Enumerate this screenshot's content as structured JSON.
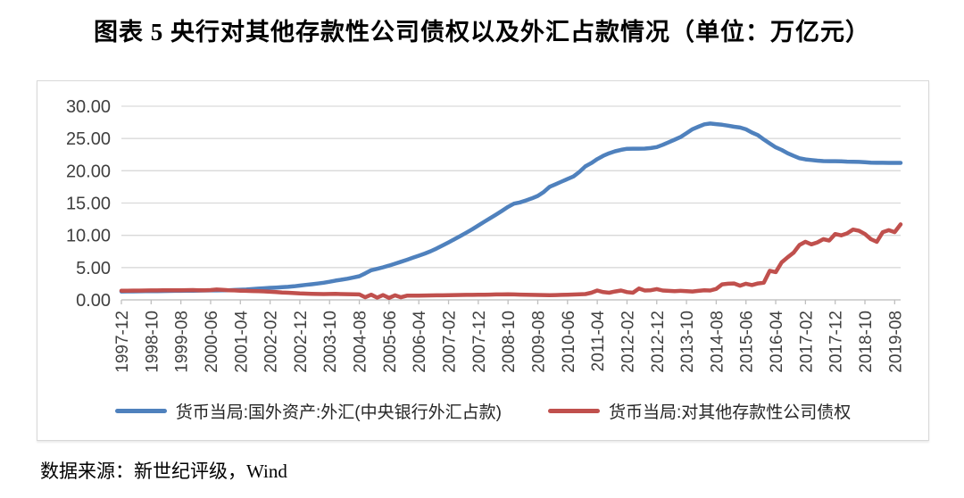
{
  "page": {
    "title": "图表 5  央行对其他存款性公司债权以及外汇占款情况（单位：万亿元）",
    "source": "数据来源：新世纪评级，Wind"
  },
  "colors": {
    "grid": "#d9d9d9",
    "axis": "#bfbfbf",
    "tick_text": "#404040",
    "background": "#ffffff"
  },
  "chart_data": {
    "type": "line",
    "title": "央行对其他存款性公司债权以及外汇占款情况",
    "unit": "万亿元",
    "xlabel": "",
    "ylabel": "",
    "ylim": [
      0,
      30
    ],
    "ytick_labels": [
      "0.00",
      "5.00",
      "10.00",
      "15.00",
      "20.00",
      "25.00",
      "30.00"
    ],
    "grid": true,
    "legend_position": "bottom",
    "x_start": "1997-12",
    "x_point_step_months": 2,
    "x_total_months": 262,
    "x_tick_every_months": 10,
    "x_tick_labels": [
      "1997-12",
      "1998-10",
      "1999-08",
      "2000-06",
      "2001-04",
      "2002-02",
      "2002-12",
      "2003-10",
      "2004-08",
      "2005-06",
      "2006-04",
      "2007-02",
      "2007-12",
      "2008-10",
      "2009-08",
      "2010-06",
      "2011-04",
      "2012-02",
      "2012-12",
      "2013-10",
      "2014-08",
      "2015-06",
      "2016-04",
      "2017-02",
      "2017-12",
      "2018-10",
      "2019-08"
    ],
    "series": [
      {
        "name": "货币当局:国外资产:外汇(中央银行外汇占款)",
        "color": "#4f81bd",
        "values": [
          1.3,
          1.31,
          1.32,
          1.33,
          1.34,
          1.35,
          1.36,
          1.37,
          1.38,
          1.39,
          1.4,
          1.41,
          1.43,
          1.44,
          1.45,
          1.46,
          1.47,
          1.48,
          1.5,
          1.53,
          1.57,
          1.61,
          1.67,
          1.74,
          1.8,
          1.86,
          1.91,
          1.96,
          2.02,
          2.1,
          2.21,
          2.32,
          2.42,
          2.53,
          2.65,
          2.81,
          2.98,
          3.12,
          3.28,
          3.47,
          3.67,
          4.1,
          4.59,
          4.81,
          5.05,
          5.31,
          5.6,
          5.9,
          6.21,
          6.52,
          6.85,
          7.18,
          7.53,
          7.96,
          8.44,
          8.9,
          9.4,
          9.9,
          10.41,
          10.95,
          11.52,
          12.1,
          12.66,
          13.21,
          13.8,
          14.4,
          14.91,
          15.1,
          15.4,
          15.72,
          16.1,
          16.72,
          17.51,
          17.92,
          18.32,
          18.72,
          19.12,
          19.82,
          20.68,
          21.2,
          21.8,
          22.32,
          22.72,
          23.02,
          23.24,
          23.4,
          23.42,
          23.42,
          23.43,
          23.52,
          23.67,
          24.02,
          24.42,
          24.82,
          25.22,
          25.82,
          26.43,
          26.82,
          27.2,
          27.32,
          27.22,
          27.12,
          26.99,
          26.82,
          26.7,
          26.42,
          25.92,
          25.52,
          24.85,
          24.22,
          23.62,
          23.22,
          22.72,
          22.32,
          21.94,
          21.76,
          21.66,
          21.56,
          21.5,
          21.48,
          21.48,
          21.46,
          21.42,
          21.4,
          21.37,
          21.33,
          21.26,
          21.24,
          21.23,
          21.22,
          21.22,
          21.22
        ]
      },
      {
        "name": "货币当局:对其他存款性公司债权",
        "color": "#c0504d",
        "values": [
          1.42,
          1.43,
          1.44,
          1.44,
          1.45,
          1.46,
          1.47,
          1.48,
          1.49,
          1.5,
          1.5,
          1.51,
          1.52,
          1.5,
          1.48,
          1.52,
          1.6,
          1.55,
          1.5,
          1.46,
          1.42,
          1.4,
          1.37,
          1.34,
          1.31,
          1.26,
          1.21,
          1.15,
          1.1,
          1.05,
          1.0,
          0.97,
          0.94,
          0.91,
          0.9,
          0.91,
          0.92,
          0.9,
          0.88,
          0.86,
          0.85,
          0.4,
          0.8,
          0.35,
          0.75,
          0.3,
          0.7,
          0.4,
          0.65,
          0.66,
          0.67,
          0.68,
          0.69,
          0.7,
          0.7,
          0.72,
          0.74,
          0.76,
          0.77,
          0.78,
          0.79,
          0.8,
          0.82,
          0.84,
          0.85,
          0.86,
          0.84,
          0.82,
          0.8,
          0.78,
          0.76,
          0.75,
          0.72,
          0.75,
          0.78,
          0.8,
          0.83,
          0.86,
          0.9,
          1.1,
          1.45,
          1.2,
          1.1,
          1.3,
          1.45,
          1.2,
          1.1,
          1.75,
          1.45,
          1.5,
          1.67,
          1.45,
          1.4,
          1.35,
          1.4,
          1.35,
          1.3,
          1.4,
          1.5,
          1.45,
          1.7,
          2.4,
          2.5,
          2.55,
          2.2,
          2.5,
          2.3,
          2.55,
          2.66,
          4.5,
          4.3,
          5.8,
          6.6,
          7.3,
          8.5,
          9.0,
          8.6,
          8.9,
          9.4,
          9.2,
          10.2,
          10.0,
          10.3,
          10.9,
          10.7,
          10.2,
          9.4,
          9.0,
          10.5,
          10.8,
          10.5,
          11.7
        ]
      }
    ]
  }
}
